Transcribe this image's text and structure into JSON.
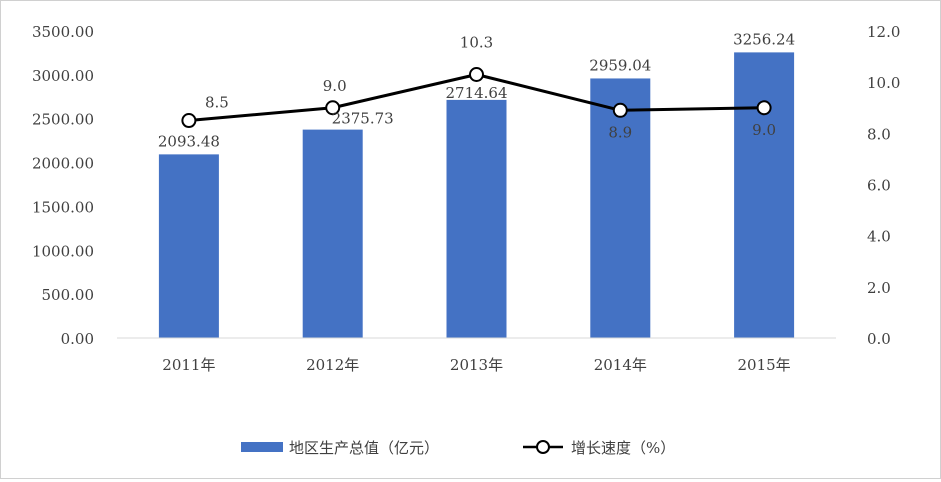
{
  "chart_data": {
    "type": "bar+line",
    "title": "",
    "categories": [
      "2011年",
      "2012年",
      "2013年",
      "2014年",
      "2015年"
    ],
    "series": [
      {
        "name": "地区生产总值（亿元）",
        "type": "bar",
        "axis": "left",
        "color": "#4472C4",
        "values": [
          2093.48,
          2375.73,
          2714.64,
          2959.04,
          3256.24
        ],
        "labels": [
          "2093.48",
          "2375.73",
          "2714.64",
          "2959.04",
          "3256.24"
        ]
      },
      {
        "name": "增长速度（%）",
        "type": "line",
        "axis": "right",
        "color": "#000000",
        "marker": "hollow-circle",
        "values": [
          8.5,
          9.0,
          10.3,
          8.9,
          9.0
        ],
        "labels": [
          "8.5",
          "9.0",
          "10.3",
          "8.9",
          "9.0"
        ]
      }
    ],
    "y_left": {
      "ylim": [
        0,
        3500
      ],
      "ticks": [
        "0.00",
        "500.00",
        "1000.00",
        "1500.00",
        "2000.00",
        "2500.00",
        "3000.00",
        "3500.00"
      ]
    },
    "y_right": {
      "ylim": [
        0,
        12
      ],
      "ticks": [
        "0.0",
        "2.0",
        "4.0",
        "6.0",
        "8.0",
        "10.0",
        "12.0"
      ]
    },
    "grid": false,
    "legend_position": "bottom"
  }
}
